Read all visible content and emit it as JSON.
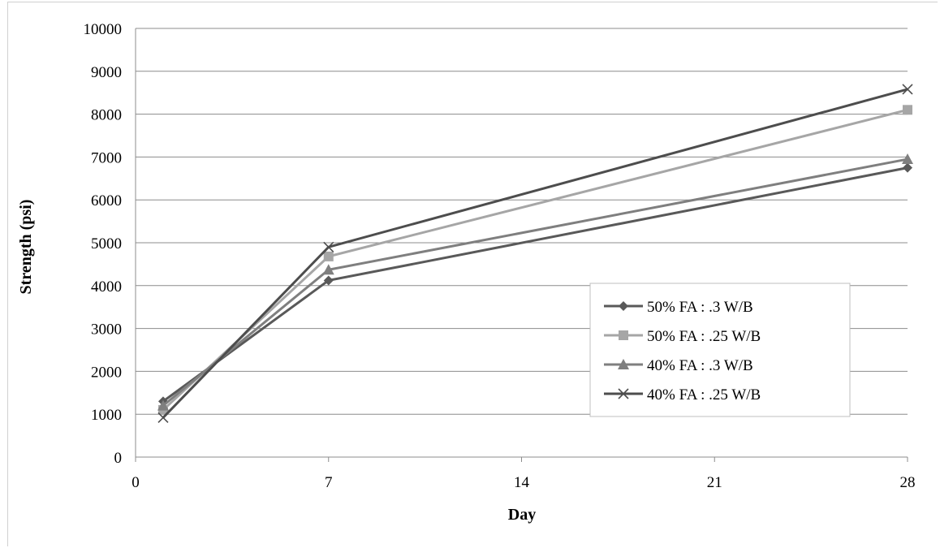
{
  "chart_data": {
    "type": "line",
    "xlabel": "Day",
    "ylabel": "Strength (psi)",
    "xlim": [
      0,
      28
    ],
    "ylim": [
      0,
      10000
    ],
    "x_ticks": [
      0,
      7,
      14,
      21,
      28
    ],
    "y_ticks": [
      0,
      1000,
      2000,
      3000,
      4000,
      5000,
      6000,
      7000,
      8000,
      9000,
      10000
    ],
    "grid": "horizontal",
    "legend_position": "right",
    "x": [
      1,
      7,
      28
    ],
    "series": [
      {
        "name": "50% FA : .3 W/B",
        "values": [
          1300,
          4120,
          6750
        ],
        "color": "#595959",
        "marker": "diamond"
      },
      {
        "name": "50% FA : .25 W/B",
        "values": [
          1100,
          4680,
          8100
        ],
        "color": "#a6a6a6",
        "marker": "square"
      },
      {
        "name": "40% FA : .3 W/B",
        "values": [
          1200,
          4370,
          6950
        ],
        "color": "#7f7f7f",
        "marker": "triangle"
      },
      {
        "name": "40% FA : .25 W/B",
        "values": [
          920,
          4900,
          8580
        ],
        "color": "#4d4d4d",
        "marker": "x"
      }
    ]
  }
}
